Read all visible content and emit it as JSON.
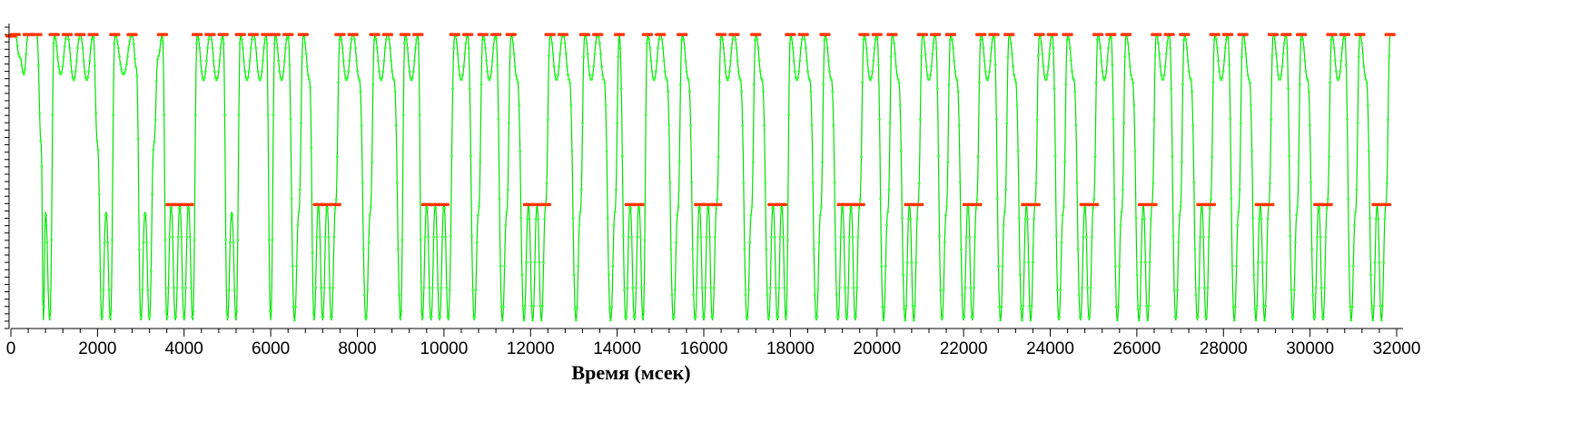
{
  "chart_data": {
    "type": "line",
    "title": "",
    "xlabel": "Время (мсек)",
    "ylabel": "",
    "xlim": [
      0,
      32000
    ],
    "ylim": [
      0,
      1
    ],
    "x_ticks": [
      0,
      2000,
      4000,
      6000,
      8000,
      10000,
      12000,
      14000,
      16000,
      18000,
      20000,
      22000,
      24000,
      26000,
      28000,
      30000,
      32000
    ],
    "y_tick_labels_visible": false,
    "grid": false,
    "legend": "none",
    "series": [
      {
        "line_color": "#00e000",
        "marker_color": "#33ff33",
        "peak_marker_color": "#ff3300",
        "levels": {
          "high": 0.975,
          "high_sag": 0.82,
          "mid": 0.395,
          "mid_sag": 0.37,
          "low": 0.0
        },
        "points": [
          [
            0,
            0.97
          ],
          [
            100,
            0.975
          ],
          [
            200,
            0.9
          ],
          [
            300,
            0.84
          ],
          [
            400,
            0.975
          ],
          [
            600,
            0.975
          ],
          [
            700,
            0.6
          ],
          [
            750,
            0.0
          ],
          [
            800,
            0.37
          ],
          [
            900,
            0.0
          ],
          [
            1000,
            0.975
          ],
          [
            1150,
            0.84
          ],
          [
            1300,
            0.975
          ],
          [
            1450,
            0.82
          ],
          [
            1600,
            0.975
          ],
          [
            1750,
            0.82
          ],
          [
            1900,
            0.975
          ],
          [
            2000,
            0.6
          ],
          [
            2100,
            0.0
          ],
          [
            2200,
            0.37
          ],
          [
            2300,
            0.0
          ],
          [
            2400,
            0.975
          ],
          [
            2600,
            0.84
          ],
          [
            2800,
            0.975
          ],
          [
            2900,
            0.86
          ],
          [
            3000,
            0.0
          ],
          [
            3100,
            0.37
          ],
          [
            3200,
            0.0
          ],
          [
            3300,
            0.6
          ],
          [
            3400,
            0.9
          ],
          [
            3500,
            0.975
          ],
          [
            3600,
            0.0
          ],
          [
            3700,
            0.395
          ],
          [
            3800,
            0.0
          ],
          [
            3900,
            0.395
          ],
          [
            4000,
            0.0
          ],
          [
            4100,
            0.395
          ],
          [
            4200,
            0.0
          ],
          [
            4300,
            0.975
          ],
          [
            4450,
            0.82
          ],
          [
            4600,
            0.975
          ],
          [
            4750,
            0.82
          ],
          [
            4900,
            0.975
          ],
          [
            5000,
            0.0
          ],
          [
            5100,
            0.37
          ],
          [
            5200,
            0.0
          ],
          [
            5300,
            0.975
          ],
          [
            5450,
            0.82
          ],
          [
            5600,
            0.975
          ],
          [
            5750,
            0.82
          ],
          [
            5900,
            0.975
          ],
          [
            6000,
            0.0
          ],
          [
            6100,
            0.975
          ],
          [
            6250,
            0.82
          ],
          [
            6400,
            0.975
          ],
          [
            6550,
            0.0
          ],
          [
            6650,
            0.37
          ],
          [
            6750,
            0.975
          ],
          [
            6900,
            0.82
          ],
          [
            7000,
            0.0
          ],
          [
            7100,
            0.395
          ],
          [
            7200,
            0.0
          ],
          [
            7300,
            0.395
          ],
          [
            7400,
            0.0
          ],
          [
            7500,
            0.395
          ],
          [
            7600,
            0.975
          ],
          [
            7750,
            0.82
          ],
          [
            7900,
            0.975
          ],
          [
            8050,
            0.82
          ],
          [
            8200,
            0.0
          ],
          [
            8300,
            0.37
          ],
          [
            8400,
            0.975
          ],
          [
            8550,
            0.82
          ],
          [
            8700,
            0.975
          ],
          [
            8850,
            0.82
          ],
          [
            9000,
            0.0
          ],
          [
            9100,
            0.975
          ],
          [
            9250,
            0.82
          ],
          [
            9400,
            0.975
          ],
          [
            9500,
            0.0
          ],
          [
            9600,
            0.395
          ],
          [
            9700,
            0.0
          ],
          [
            9800,
            0.395
          ],
          [
            9900,
            0.0
          ],
          [
            10000,
            0.395
          ],
          [
            10100,
            0.0
          ],
          [
            10250,
            0.975
          ],
          [
            10400,
            0.82
          ],
          [
            10550,
            0.975
          ],
          [
            10700,
            0.0
          ],
          [
            10800,
            0.37
          ],
          [
            10900,
            0.975
          ],
          [
            11050,
            0.82
          ],
          [
            11200,
            0.975
          ],
          [
            11350,
            0.0
          ],
          [
            11450,
            0.37
          ],
          [
            11550,
            0.975
          ],
          [
            11700,
            0.82
          ],
          [
            11850,
            0.0
          ],
          [
            11950,
            0.395
          ],
          [
            12050,
            0.0
          ],
          [
            12150,
            0.395
          ],
          [
            12250,
            0.0
          ],
          [
            12350,
            0.395
          ],
          [
            12450,
            0.975
          ],
          [
            12600,
            0.82
          ],
          [
            12750,
            0.975
          ],
          [
            12900,
            0.82
          ],
          [
            13050,
            0.0
          ],
          [
            13150,
            0.37
          ],
          [
            13250,
            0.975
          ],
          [
            13400,
            0.82
          ],
          [
            13550,
            0.975
          ],
          [
            13700,
            0.82
          ],
          [
            13850,
            0.0
          ],
          [
            13950,
            0.37
          ],
          [
            14050,
            0.975
          ],
          [
            14200,
            0.0
          ],
          [
            14300,
            0.395
          ],
          [
            14400,
            0.0
          ],
          [
            14500,
            0.395
          ],
          [
            14600,
            0.0
          ],
          [
            14700,
            0.975
          ],
          [
            14850,
            0.82
          ],
          [
            15000,
            0.975
          ],
          [
            15150,
            0.82
          ],
          [
            15300,
            0.0
          ],
          [
            15400,
            0.37
          ],
          [
            15500,
            0.975
          ],
          [
            15650,
            0.82
          ],
          [
            15800,
            0.0
          ],
          [
            15900,
            0.395
          ],
          [
            16000,
            0.0
          ],
          [
            16100,
            0.395
          ],
          [
            16200,
            0.0
          ],
          [
            16300,
            0.395
          ],
          [
            16400,
            0.975
          ],
          [
            16550,
            0.82
          ],
          [
            16700,
            0.975
          ],
          [
            16850,
            0.82
          ],
          [
            17000,
            0.0
          ],
          [
            17100,
            0.37
          ],
          [
            17200,
            0.975
          ],
          [
            17350,
            0.82
          ],
          [
            17500,
            0.0
          ],
          [
            17600,
            0.395
          ],
          [
            17700,
            0.0
          ],
          [
            17800,
            0.395
          ],
          [
            17900,
            0.0
          ],
          [
            18000,
            0.975
          ],
          [
            18150,
            0.82
          ],
          [
            18300,
            0.975
          ],
          [
            18450,
            0.82
          ],
          [
            18600,
            0.0
          ],
          [
            18700,
            0.37
          ],
          [
            18800,
            0.975
          ],
          [
            18950,
            0.82
          ],
          [
            19100,
            0.0
          ],
          [
            19200,
            0.395
          ],
          [
            19300,
            0.0
          ],
          [
            19400,
            0.395
          ],
          [
            19500,
            0.0
          ],
          [
            19600,
            0.395
          ],
          [
            19700,
            0.975
          ],
          [
            19850,
            0.82
          ],
          [
            20000,
            0.975
          ],
          [
            20150,
            0.0
          ],
          [
            20250,
            0.37
          ],
          [
            20350,
            0.975
          ],
          [
            20500,
            0.82
          ],
          [
            20650,
            0.0
          ],
          [
            20750,
            0.395
          ],
          [
            20850,
            0.0
          ],
          [
            20950,
            0.395
          ],
          [
            21050,
            0.975
          ],
          [
            21200,
            0.82
          ],
          [
            21350,
            0.975
          ],
          [
            21500,
            0.0
          ],
          [
            21600,
            0.37
          ],
          [
            21700,
            0.975
          ],
          [
            21850,
            0.82
          ],
          [
            22000,
            0.0
          ],
          [
            22100,
            0.395
          ],
          [
            22200,
            0.0
          ],
          [
            22300,
            0.395
          ],
          [
            22400,
            0.975
          ],
          [
            22550,
            0.82
          ],
          [
            22700,
            0.975
          ],
          [
            22850,
            0.0
          ],
          [
            22950,
            0.37
          ],
          [
            23050,
            0.975
          ],
          [
            23200,
            0.82
          ],
          [
            23350,
            0.0
          ],
          [
            23450,
            0.395
          ],
          [
            23550,
            0.0
          ],
          [
            23650,
            0.395
          ],
          [
            23750,
            0.975
          ],
          [
            23900,
            0.82
          ],
          [
            24050,
            0.975
          ],
          [
            24200,
            0.0
          ],
          [
            24300,
            0.37
          ],
          [
            24400,
            0.975
          ],
          [
            24550,
            0.82
          ],
          [
            24700,
            0.0
          ],
          [
            24800,
            0.395
          ],
          [
            24900,
            0.0
          ],
          [
            25000,
            0.395
          ],
          [
            25100,
            0.975
          ],
          [
            25250,
            0.82
          ],
          [
            25400,
            0.975
          ],
          [
            25550,
            0.0
          ],
          [
            25650,
            0.37
          ],
          [
            25750,
            0.975
          ],
          [
            25900,
            0.82
          ],
          [
            26050,
            0.0
          ],
          [
            26150,
            0.395
          ],
          [
            26250,
            0.0
          ],
          [
            26350,
            0.395
          ],
          [
            26450,
            0.975
          ],
          [
            26600,
            0.82
          ],
          [
            26750,
            0.975
          ],
          [
            26900,
            0.0
          ],
          [
            27000,
            0.37
          ],
          [
            27100,
            0.975
          ],
          [
            27250,
            0.82
          ],
          [
            27400,
            0.0
          ],
          [
            27500,
            0.395
          ],
          [
            27600,
            0.0
          ],
          [
            27700,
            0.395
          ],
          [
            27800,
            0.975
          ],
          [
            27950,
            0.82
          ],
          [
            28100,
            0.975
          ],
          [
            28250,
            0.0
          ],
          [
            28350,
            0.37
          ],
          [
            28450,
            0.975
          ],
          [
            28600,
            0.82
          ],
          [
            28750,
            0.0
          ],
          [
            28850,
            0.395
          ],
          [
            28950,
            0.0
          ],
          [
            29050,
            0.395
          ],
          [
            29150,
            0.975
          ],
          [
            29300,
            0.82
          ],
          [
            29450,
            0.975
          ],
          [
            29600,
            0.0
          ],
          [
            29700,
            0.37
          ],
          [
            29800,
            0.975
          ],
          [
            29950,
            0.82
          ],
          [
            30100,
            0.0
          ],
          [
            30200,
            0.395
          ],
          [
            30300,
            0.0
          ],
          [
            30400,
            0.395
          ],
          [
            30500,
            0.975
          ],
          [
            30650,
            0.82
          ],
          [
            30800,
            0.975
          ],
          [
            30950,
            0.0
          ],
          [
            31050,
            0.37
          ],
          [
            31150,
            0.975
          ],
          [
            31300,
            0.82
          ],
          [
            31450,
            0.0
          ],
          [
            31550,
            0.395
          ],
          [
            31650,
            0.0
          ],
          [
            31750,
            0.395
          ],
          [
            31850,
            0.975
          ]
        ]
      }
    ]
  }
}
